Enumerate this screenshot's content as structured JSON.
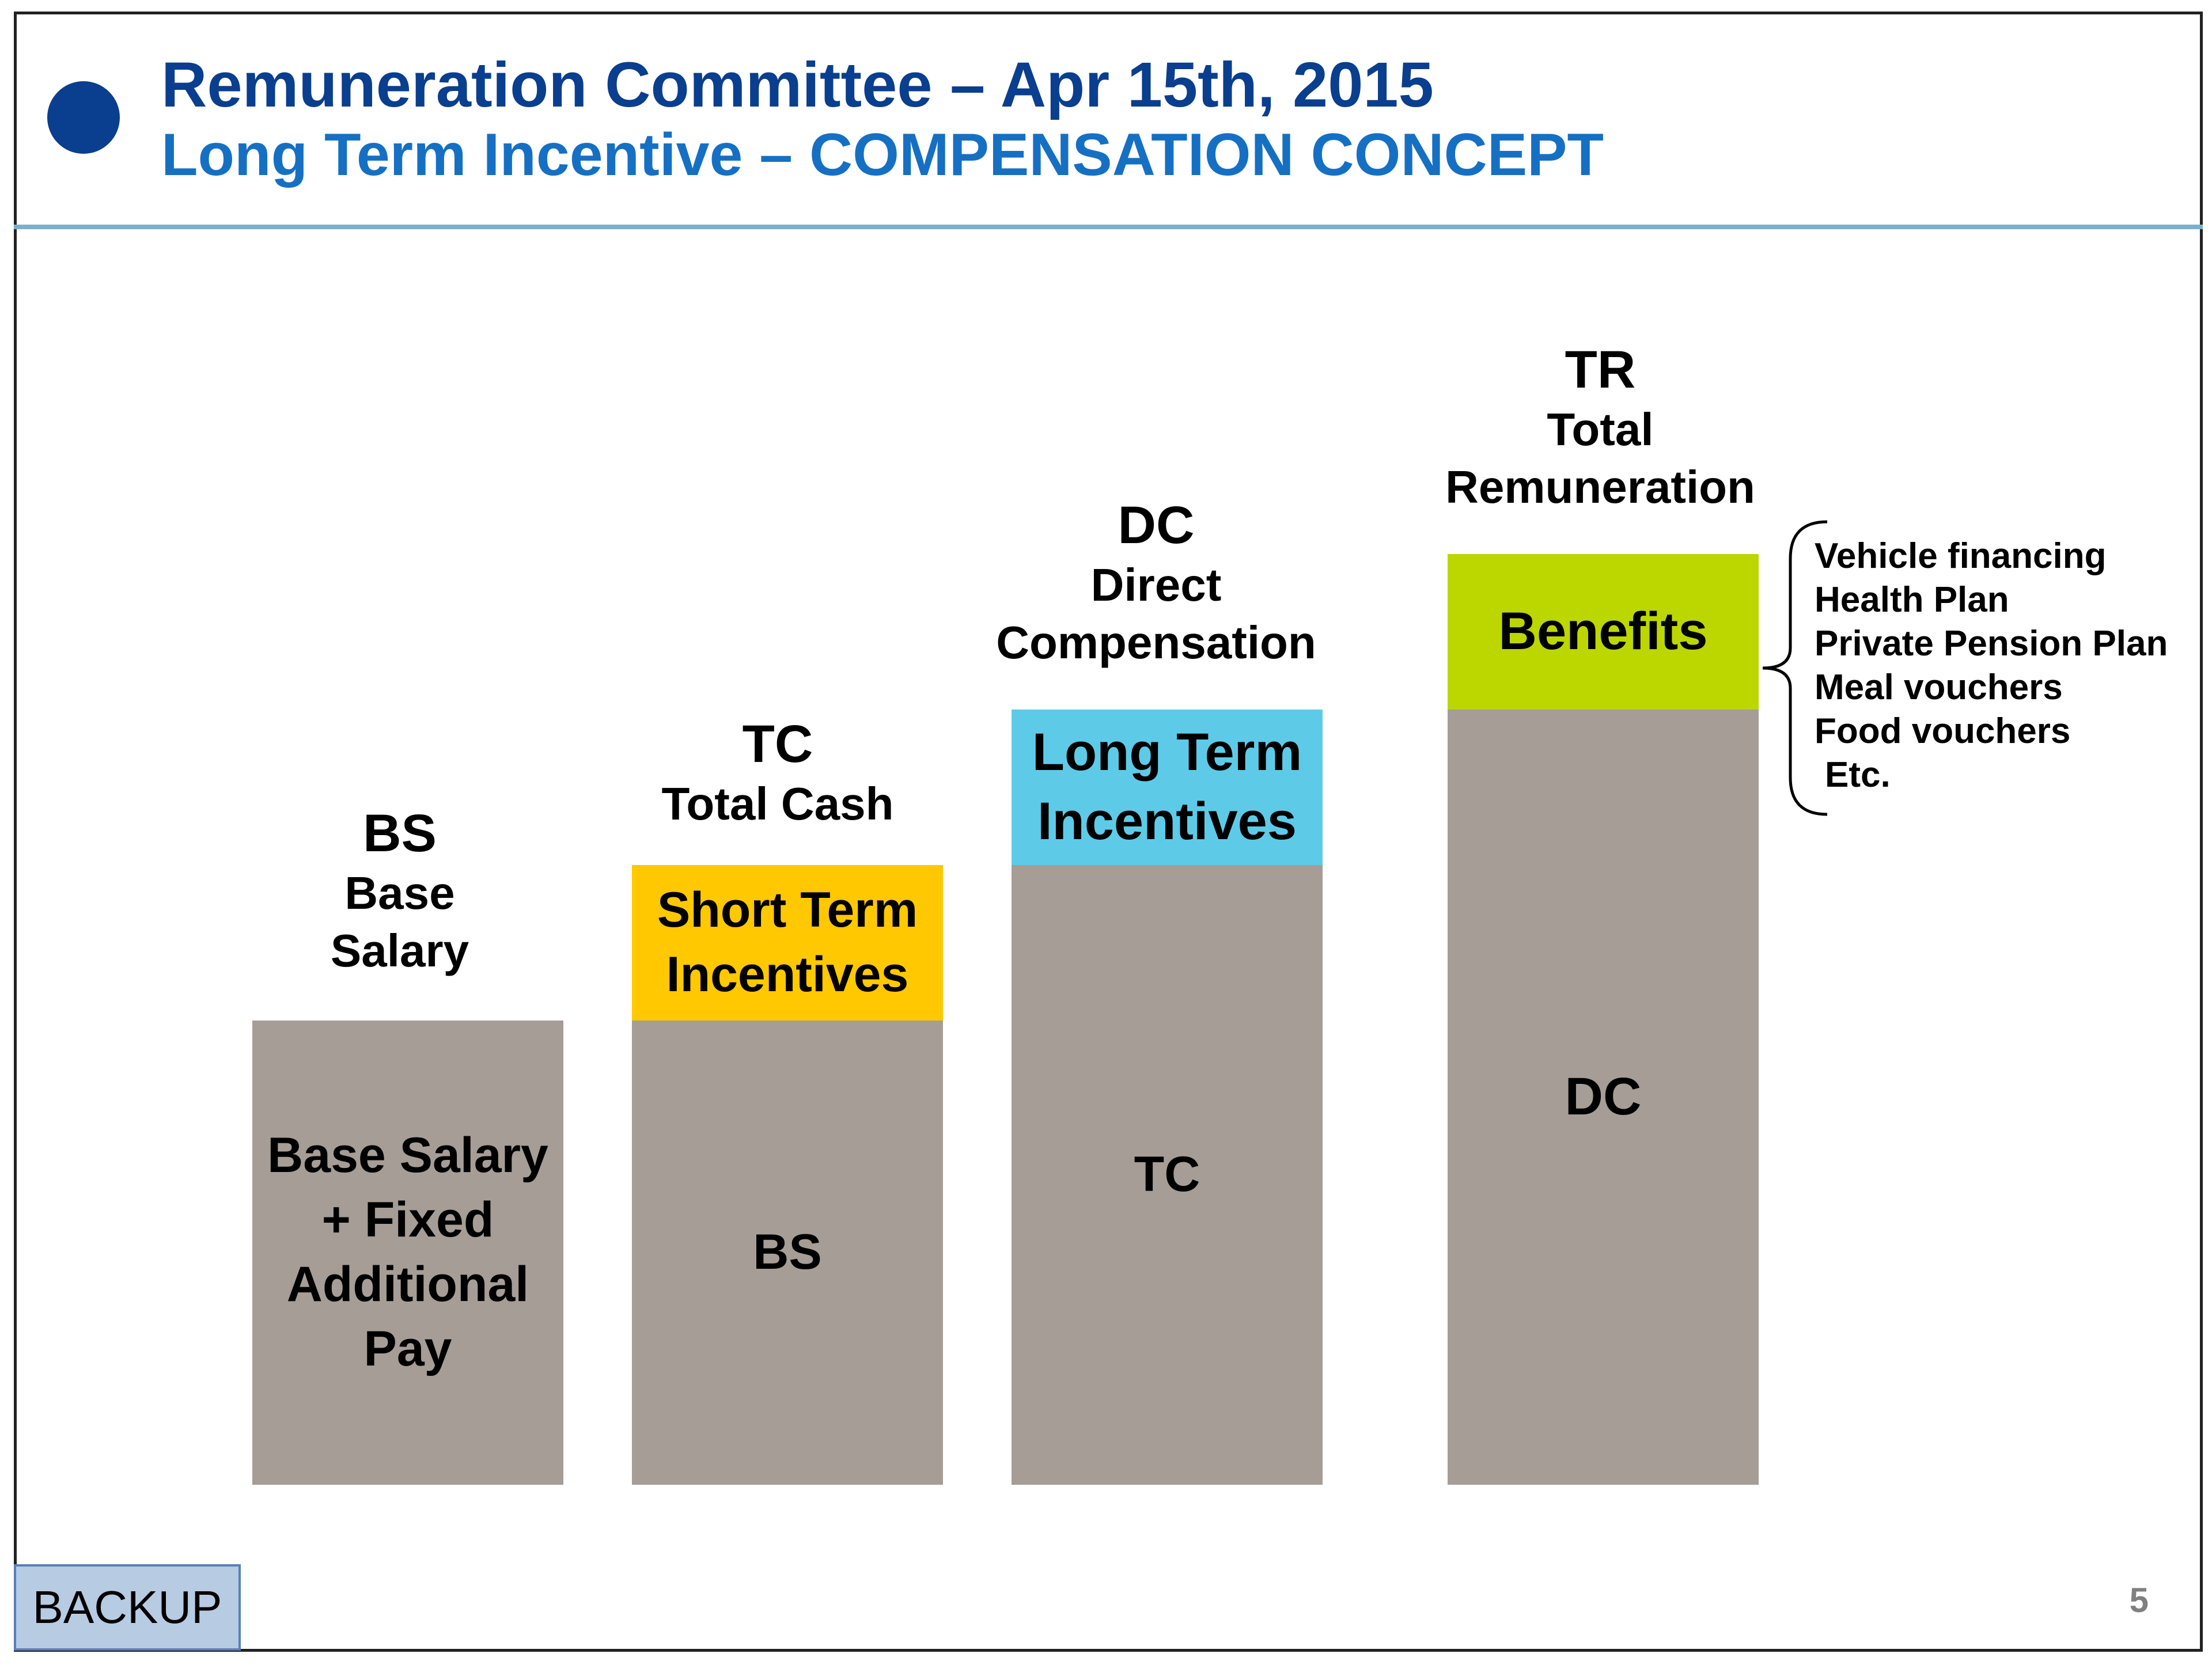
{
  "colors": {
    "title_dark": "#0a3e8e",
    "title_accent": "#1570c4",
    "rule": "#7bb0cc",
    "bar_gray": "#a59d96",
    "short_term": "#ffc800",
    "long_term": "#5dcbe8",
    "benefits": "#bcd600",
    "backup_bg": "#b7cbe2"
  },
  "header": {
    "title": "Remuneration Committee – Apr 15th, 2015",
    "subtitle": "Long Term Incentive – COMPENSATION CONCEPT"
  },
  "columns": [
    {
      "abbr": "BS",
      "full_lines": [
        "Base",
        "Salary"
      ],
      "segments": [
        {
          "lines": [
            "Base Salary",
            "+ Fixed",
            "Additional",
            "Pay"
          ],
          "color": "bar_gray"
        }
      ]
    },
    {
      "abbr": "TC",
      "full_lines": [
        "Total Cash"
      ],
      "segments": [
        {
          "lines": [
            "Short Term",
            "Incentives"
          ],
          "color": "short_term"
        },
        {
          "lines": [
            "BS"
          ],
          "color": "bar_gray"
        }
      ]
    },
    {
      "abbr": "DC",
      "full_lines": [
        "Direct",
        "Compensation"
      ],
      "segments": [
        {
          "lines": [
            "Long Term",
            "Incentives"
          ],
          "color": "long_term"
        },
        {
          "lines": [
            "TC"
          ],
          "color": "bar_gray"
        }
      ]
    },
    {
      "abbr": "TR",
      "full_lines": [
        "Total",
        "Remuneration"
      ],
      "segments": [
        {
          "lines": [
            "Benefits"
          ],
          "color": "benefits"
        },
        {
          "lines": [
            "DC"
          ],
          "color": "bar_gray"
        }
      ]
    }
  ],
  "benefits_list": [
    "Vehicle financing",
    "Health Plan",
    "Private Pension Plan",
    "Meal vouchers",
    "Food vouchers",
    "Etc."
  ],
  "footer": {
    "backup_label": "BACKUP",
    "page_number": "5"
  }
}
